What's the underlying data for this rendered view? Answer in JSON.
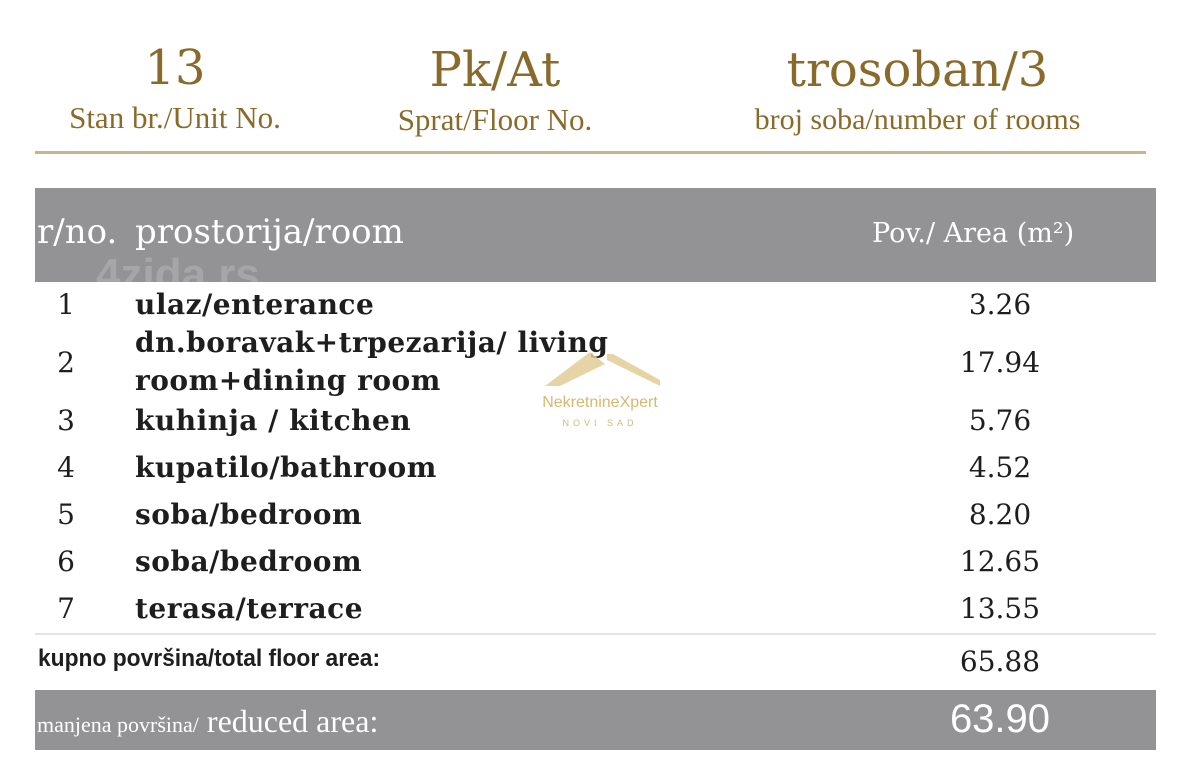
{
  "header": {
    "unit": {
      "value": "13",
      "label": "Stan br./Unit No."
    },
    "floor": {
      "value": "Pk/At",
      "label": "Sprat/Floor No."
    },
    "rooms": {
      "value": "trosoban/3",
      "label": "broj soba/number of rooms"
    }
  },
  "table": {
    "col_no": "r/no.",
    "col_room": "prostorija/room",
    "col_area": "Pov./ Area (m²)",
    "rows": [
      {
        "no": "1",
        "room": "ulaz/enterance",
        "area": "3.26"
      },
      {
        "no": "2",
        "room": "dn.boravak+trpezarija/ living",
        "room2": "room+dining room",
        "area": "17.94"
      },
      {
        "no": "3",
        "room": "kuhinja / kitchen",
        "area": "5.76"
      },
      {
        "no": "4",
        "room": "kupatilo/bathroom",
        "area": "4.52"
      },
      {
        "no": "5",
        "room": "soba/bedroom",
        "area": "8.20"
      },
      {
        "no": "6",
        "room": "soba/bedroom",
        "area": "12.65"
      },
      {
        "no": "7",
        "room": "terasa/terrace",
        "area": "13.55"
      }
    ],
    "total_label": "kupno površina/total floor area:",
    "total_value": "65.88",
    "reduced_label_small": "manjena površina/",
    "reduced_label_large": " reduced area:",
    "reduced_value": "63.90"
  },
  "watermarks": {
    "site": "4zida.rs",
    "brand": "NekretnineXpert",
    "city": "NOVI SAD"
  },
  "colors": {
    "gold": "#8a6a2a",
    "band_gray": "#939294",
    "logo_gold": "#d6b872"
  }
}
